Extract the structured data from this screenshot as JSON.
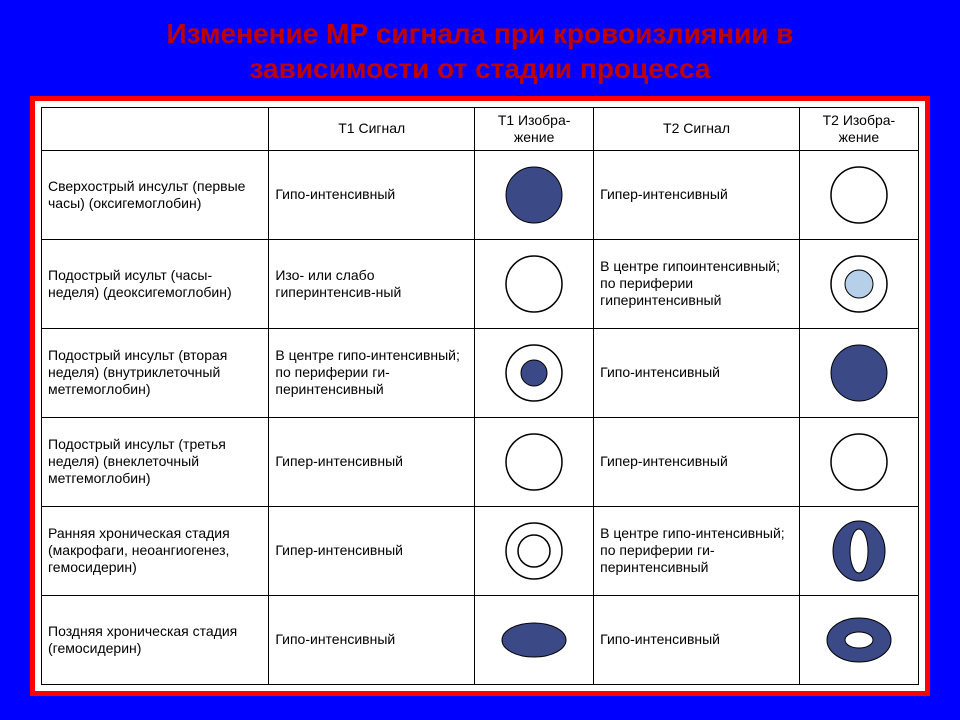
{
  "colors": {
    "background": "#0000ff",
    "titleColor": "#c00000",
    "panelBorder": "#ff0000",
    "tableBorder": "#000000",
    "darkFill": "#3b4a87",
    "lightFill": "#b6d0e9",
    "white": "#ffffff",
    "stroke": "#000000"
  },
  "title_line1": "Изменение МР сигнала при кровоизлиянии в",
  "title_line2": "зависимости от стадии процесса",
  "headers": {
    "empty": "",
    "t1signal": "Т1 Сигнал",
    "t1image": "Т1 Изобра-жение",
    "t2signal": "Т2 Сигнал",
    "t2image": "Т2 Изобра-жение"
  },
  "rows": [
    {
      "stage": "Сверхострый инсульт (первые часы) (оксигемоглобин)",
      "t1text": "Гипо-интенсивный",
      "t1imageKey": "solidDark",
      "t2text": "Гипер-интенсивный",
      "t2imageKey": "solidWhite"
    },
    {
      "stage": "Подострый исульт (часы-неделя) (деоксигемоглобин)",
      "t1text": "Изо- или слабо гиперинтенсив-ный",
      "t1imageKey": "solidWhite",
      "t2text": "В центре гипоинтенсивный; по периферии гиперинтенсивный",
      "t2imageKey": "whiteWithLightCenter"
    },
    {
      "stage": "Подострый инсульт (вторая неделя) (внутриклеточный метгемоглобин)",
      "t1text": "В центре гипо-интенсивный; по периферии ги-перинтенсивный",
      "t1imageKey": "whiteWithDarkCenter",
      "t2text": "Гипо-интенсивный",
      "t2imageKey": "solidDark"
    },
    {
      "stage": "Подострый инсульт (третья неделя) (внеклеточный метгемоглобин)",
      "t1text": "Гипер-интенсивный",
      "t1imageKey": "solidWhite",
      "t2text": "Гипер-интенсивный",
      "t2imageKey": "solidWhite"
    },
    {
      "stage": "Ранняя хроническая стадия (макрофаги, неоангиогенез, гемосидерин)",
      "t1text": "Гипер-интенсивный",
      "t1imageKey": "doubleWhiteRing",
      "t2text": "В центре гипо-интенсивный; по периферии ги-перинтенсивный",
      "t2imageKey": "darkWithWhiteLens"
    },
    {
      "stage": "Поздняя хроническая стадия (гемосидерин)",
      "t1text": "Гипо-интенсивный",
      "t1imageKey": "solidDarkEllipse",
      "t2text": "Гипо-интенсивный",
      "t2imageKey": "darkDonut"
    }
  ]
}
